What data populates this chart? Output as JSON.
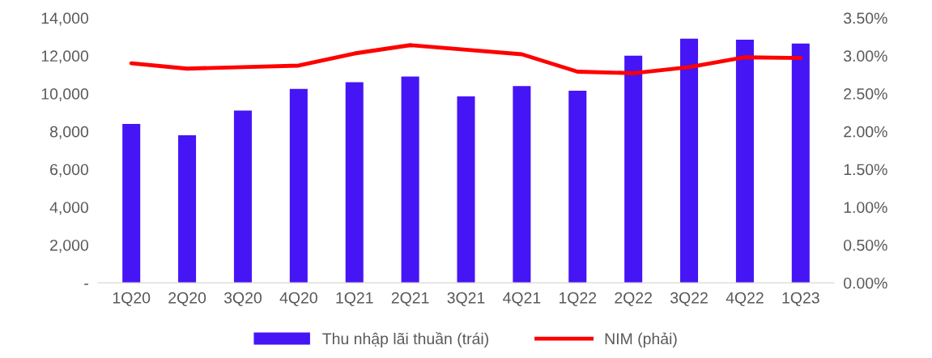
{
  "chart_data": {
    "type": "bar",
    "categories": [
      "1Q20",
      "2Q20",
      "3Q20",
      "4Q20",
      "1Q21",
      "2Q21",
      "3Q21",
      "4Q21",
      "1Q22",
      "2Q22",
      "3Q22",
      "4Q22",
      "1Q23"
    ],
    "series": [
      {
        "name": "Thu nhập lãi thuần (trái)",
        "color": "#4515f5",
        "values": [
          8400,
          7800,
          9100,
          10250,
          10600,
          10900,
          9850,
          10400,
          10150,
          12000,
          12900,
          12850,
          12650
        ]
      },
      {
        "name": "NIM (phải)",
        "type": "line",
        "axis": "y2",
        "color": "#ff0000",
        "values": [
          2.9,
          2.83,
          2.85,
          2.87,
          3.03,
          3.14,
          3.08,
          3.02,
          2.79,
          2.77,
          2.85,
          2.98,
          2.97
        ]
      }
    ],
    "ylim": [
      0,
      14000
    ],
    "yticks": [
      {
        "value": 0,
        "label": "-"
      },
      {
        "value": 2000,
        "label": "2,000"
      },
      {
        "value": 4000,
        "label": "4,000"
      },
      {
        "value": 6000,
        "label": "6,000"
      },
      {
        "value": 8000,
        "label": "8,000"
      },
      {
        "value": 10000,
        "label": "10,000"
      },
      {
        "value": 12000,
        "label": "12,000"
      },
      {
        "value": 14000,
        "label": "14,000"
      }
    ],
    "y2lim": [
      0,
      3.5
    ],
    "y2ticks": [
      {
        "value": 0,
        "label": "0.00%"
      },
      {
        "value": 0.5,
        "label": "0.50%"
      },
      {
        "value": 1.0,
        "label": "1.00%"
      },
      {
        "value": 1.5,
        "label": "1.50%"
      },
      {
        "value": 2.0,
        "label": "2.00%"
      },
      {
        "value": 2.5,
        "label": "2.50%"
      },
      {
        "value": 3.0,
        "label": "3.00%"
      },
      {
        "value": 3.5,
        "label": "3.50%"
      }
    ],
    "grid": false,
    "legend": "bottom",
    "marker": "none"
  }
}
